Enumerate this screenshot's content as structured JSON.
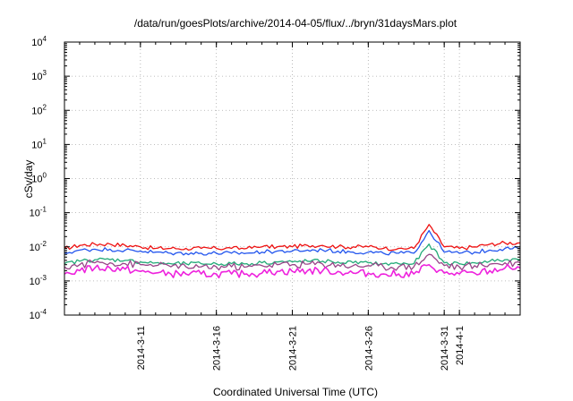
{
  "chart_data": {
    "type": "line",
    "title": "/data/run/goesPlots/archive/2014-04-05/flux/../bryn/31daysMars.plot",
    "xlabel": "Coordinated Universal Time (UTC)",
    "ylabel": "cSv/day",
    "y_scale": "log",
    "ylim": [
      0.0001,
      10000
    ],
    "y_ticks": [
      {
        "value": 0.0001,
        "base": "10",
        "exp": "-4"
      },
      {
        "value": 0.001,
        "base": "10",
        "exp": "-3"
      },
      {
        "value": 0.01,
        "base": "10",
        "exp": "-2"
      },
      {
        "value": 0.1,
        "base": "10",
        "exp": "-1"
      },
      {
        "value": 1,
        "base": "10",
        "exp": "0"
      },
      {
        "value": 10,
        "base": "10",
        "exp": "1"
      },
      {
        "value": 100,
        "base": "10",
        "exp": "2"
      },
      {
        "value": 1000,
        "base": "10",
        "exp": "3"
      },
      {
        "value": 10000,
        "base": "10",
        "exp": "4"
      }
    ],
    "xlim": [
      "2014-03-06",
      "2014-04-05"
    ],
    "x_ticks": [
      {
        "label": "2014-3-11",
        "date": "2014-03-11"
      },
      {
        "label": "2014-3-16",
        "date": "2014-03-16"
      },
      {
        "label": "2014-3-21",
        "date": "2014-03-21"
      },
      {
        "label": "2014-3-26",
        "date": "2014-03-26"
      },
      {
        "label": "2014-3-31",
        "date": "2014-03-31"
      },
      {
        "label": "2014-4-1",
        "date": "2014-04-01"
      }
    ],
    "grid": true,
    "legend": "none",
    "series": [
      {
        "color": "#ee1111",
        "x": [
          "2014-03-06",
          "2014-03-07",
          "2014-03-08",
          "2014-03-09",
          "2014-03-10",
          "2014-03-11",
          "2014-03-12",
          "2014-03-13",
          "2014-03-14",
          "2014-03-15",
          "2014-03-16",
          "2014-03-17",
          "2014-03-18",
          "2014-03-19",
          "2014-03-20",
          "2014-03-21",
          "2014-03-22",
          "2014-03-23",
          "2014-03-24",
          "2014-03-25",
          "2014-03-26",
          "2014-03-27",
          "2014-03-28",
          "2014-03-29",
          "2014-03-30",
          "2014-03-31",
          "2014-04-01",
          "2014-04-02",
          "2014-04-03",
          "2014-04-04",
          "2014-04-05"
        ],
        "y": [
          0.009,
          0.011,
          0.012,
          0.012,
          0.011,
          0.01,
          0.009,
          0.009,
          0.009,
          0.009,
          0.009,
          0.009,
          0.009,
          0.01,
          0.01,
          0.01,
          0.011,
          0.011,
          0.01,
          0.01,
          0.01,
          0.009,
          0.009,
          0.009,
          0.045,
          0.01,
          0.009,
          0.01,
          0.012,
          0.013,
          0.013
        ]
      },
      {
        "color": "#2255ee",
        "x": [
          "2014-03-06",
          "2014-03-07",
          "2014-03-08",
          "2014-03-09",
          "2014-03-10",
          "2014-03-11",
          "2014-03-12",
          "2014-03-13",
          "2014-03-14",
          "2014-03-15",
          "2014-03-16",
          "2014-03-17",
          "2014-03-18",
          "2014-03-19",
          "2014-03-20",
          "2014-03-21",
          "2014-03-22",
          "2014-03-23",
          "2014-03-24",
          "2014-03-25",
          "2014-03-26",
          "2014-03-27",
          "2014-03-28",
          "2014-03-29",
          "2014-03-30",
          "2014-03-31",
          "2014-04-01",
          "2014-04-02",
          "2014-04-03",
          "2014-04-04",
          "2014-04-05"
        ],
        "y": [
          0.0065,
          0.008,
          0.0085,
          0.0085,
          0.008,
          0.0075,
          0.007,
          0.0065,
          0.0065,
          0.0065,
          0.0065,
          0.0065,
          0.0065,
          0.007,
          0.0075,
          0.0075,
          0.008,
          0.008,
          0.0075,
          0.007,
          0.007,
          0.0065,
          0.0065,
          0.0065,
          0.03,
          0.007,
          0.0065,
          0.007,
          0.008,
          0.009,
          0.009
        ]
      },
      {
        "color": "#22aa77",
        "x": [
          "2014-03-06",
          "2014-03-07",
          "2014-03-08",
          "2014-03-09",
          "2014-03-10",
          "2014-03-11",
          "2014-03-12",
          "2014-03-13",
          "2014-03-14",
          "2014-03-15",
          "2014-03-16",
          "2014-03-17",
          "2014-03-18",
          "2014-03-19",
          "2014-03-20",
          "2014-03-21",
          "2014-03-22",
          "2014-03-23",
          "2014-03-24",
          "2014-03-25",
          "2014-03-26",
          "2014-03-27",
          "2014-03-28",
          "2014-03-29",
          "2014-03-30",
          "2014-03-31",
          "2014-04-01",
          "2014-04-02",
          "2014-04-03",
          "2014-04-04",
          "2014-04-05"
        ],
        "y": [
          0.0032,
          0.0038,
          0.0042,
          0.0042,
          0.004,
          0.0036,
          0.0034,
          0.0032,
          0.0032,
          0.0032,
          0.0032,
          0.0032,
          0.0032,
          0.0034,
          0.0036,
          0.0036,
          0.0038,
          0.0038,
          0.0036,
          0.0034,
          0.0034,
          0.0032,
          0.0032,
          0.0032,
          0.012,
          0.0034,
          0.0032,
          0.0034,
          0.0038,
          0.0042,
          0.0042
        ]
      },
      {
        "color": "#994488",
        "x": [
          "2014-03-06",
          "2014-03-07",
          "2014-03-08",
          "2014-03-09",
          "2014-03-10",
          "2014-03-11",
          "2014-03-12",
          "2014-03-13",
          "2014-03-14",
          "2014-03-15",
          "2014-03-16",
          "2014-03-17",
          "2014-03-18",
          "2014-03-19",
          "2014-03-20",
          "2014-03-21",
          "2014-03-22",
          "2014-03-23",
          "2014-03-24",
          "2014-03-25",
          "2014-03-26",
          "2014-03-27",
          "2014-03-28",
          "2014-03-29",
          "2014-03-30",
          "2014-03-31",
          "2014-04-01",
          "2014-04-02",
          "2014-04-03",
          "2014-04-04",
          "2014-04-05"
        ],
        "y": [
          0.0026,
          0.003,
          0.0034,
          0.0034,
          0.0032,
          0.003,
          0.0028,
          0.0026,
          0.0026,
          0.0026,
          0.0026,
          0.0026,
          0.0026,
          0.0028,
          0.003,
          0.003,
          0.0031,
          0.0031,
          0.003,
          0.0028,
          0.0028,
          0.0026,
          0.0026,
          0.0026,
          0.006,
          0.0028,
          0.0026,
          0.0028,
          0.0031,
          0.0034,
          0.0034
        ]
      },
      {
        "color": "#ee22dd",
        "x": [
          "2014-03-06",
          "2014-03-07",
          "2014-03-08",
          "2014-03-09",
          "2014-03-10",
          "2014-03-11",
          "2014-03-12",
          "2014-03-13",
          "2014-03-14",
          "2014-03-15",
          "2014-03-16",
          "2014-03-17",
          "2014-03-18",
          "2014-03-19",
          "2014-03-20",
          "2014-03-21",
          "2014-03-22",
          "2014-03-23",
          "2014-03-24",
          "2014-03-25",
          "2014-03-26",
          "2014-03-27",
          "2014-03-28",
          "2014-03-29",
          "2014-03-30",
          "2014-03-31",
          "2014-04-01",
          "2014-04-02",
          "2014-04-03",
          "2014-04-04",
          "2014-04-05"
        ],
        "y": [
          0.0016,
          0.002,
          0.0024,
          0.0024,
          0.0022,
          0.0019,
          0.0017,
          0.0016,
          0.0016,
          0.0016,
          0.0016,
          0.0016,
          0.0016,
          0.0017,
          0.0019,
          0.0019,
          0.002,
          0.002,
          0.0019,
          0.0017,
          0.0017,
          0.0016,
          0.0016,
          0.0016,
          0.003,
          0.0017,
          0.0016,
          0.0017,
          0.002,
          0.0024,
          0.0024
        ]
      }
    ]
  }
}
